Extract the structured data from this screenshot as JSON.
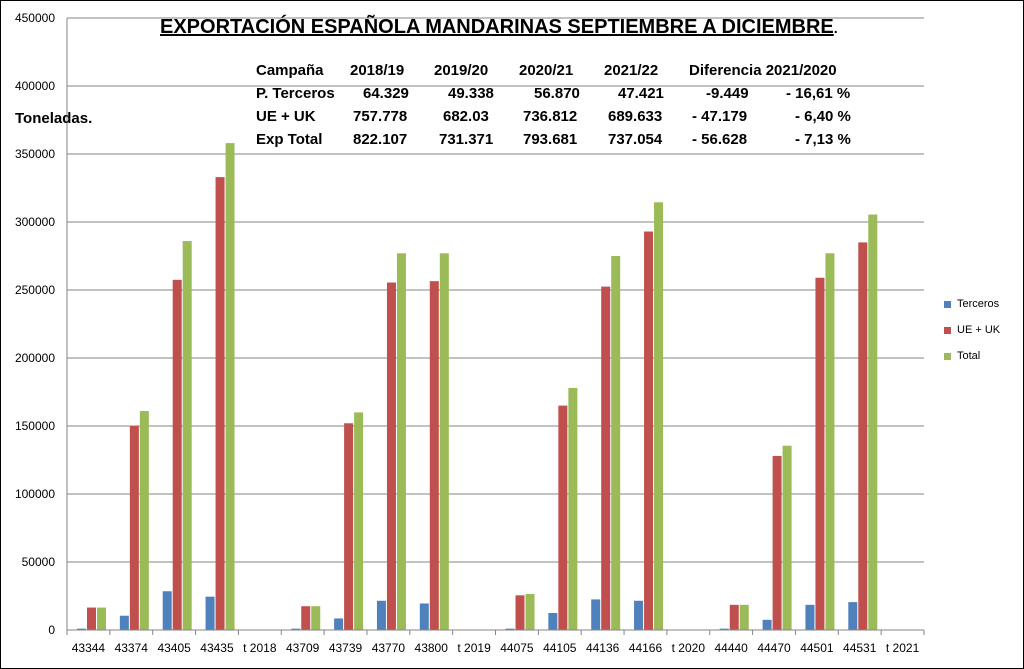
{
  "title": "EXPORTACIÓN ESPAÑOLA MANDARINAS SEPTIEMBRE A DICIEMBRE",
  "title_suffix": ".",
  "units_label": "Toneladas.",
  "stats_table": {
    "header": [
      "Campaña",
      "2018/19",
      "2019/20",
      "2020/21",
      "2021/22",
      "Diferencia 2021/2020",
      ""
    ],
    "rows": [
      [
        "P. Terceros",
        "64.329",
        "49.338",
        "56.870",
        "47.421",
        "-9.449",
        "- 16,61 %"
      ],
      [
        "UE + UK",
        "757.778",
        "682.03",
        "736.812",
        "689.633",
        "- 47.179",
        "- 6,40 %"
      ],
      [
        "Exp Total",
        "822.107",
        "731.371",
        "793.681",
        "737.054",
        "- 56.628",
        "- 7,13 %"
      ]
    ]
  },
  "chart_data": {
    "type": "bar",
    "categories": [
      "43344",
      "43374",
      "43405",
      "43435",
      "t 2018",
      "43709",
      "43739",
      "43770",
      "43800",
      "t 2019",
      "44075",
      "44105",
      "44136",
      "44166",
      "t 2020",
      "44440",
      "44470",
      "44501",
      "44531",
      "t 2021"
    ],
    "series": [
      {
        "name": "Terceros",
        "color": "#4F81BD",
        "values": [
          1000,
          10500,
          28500,
          24500,
          0,
          1000,
          8500,
          21500,
          19500,
          0,
          1000,
          12500,
          22500,
          21500,
          0,
          1000,
          7500,
          18500,
          20500,
          0
        ]
      },
      {
        "name": "UE + UK",
        "color": "#C0504D",
        "values": [
          16500,
          150000,
          257500,
          333000,
          0,
          17500,
          152000,
          255500,
          256500,
          0,
          25500,
          165000,
          252500,
          293000,
          0,
          18500,
          128000,
          259000,
          285000,
          0
        ]
      },
      {
        "name": "Total",
        "color": "#9BBB59",
        "values": [
          16500,
          161000,
          286000,
          358000,
          0,
          17500,
          160000,
          277000,
          277000,
          0,
          26500,
          178000,
          275000,
          314500,
          0,
          18500,
          135500,
          277000,
          305500,
          0
        ]
      }
    ],
    "yticks": [
      "0",
      "50000",
      "100000",
      "150000",
      "200000",
      "250000",
      "300000",
      "350000",
      "400000",
      "450000"
    ],
    "ylim": [
      0,
      450000
    ],
    "grid": true,
    "legend": "right"
  }
}
